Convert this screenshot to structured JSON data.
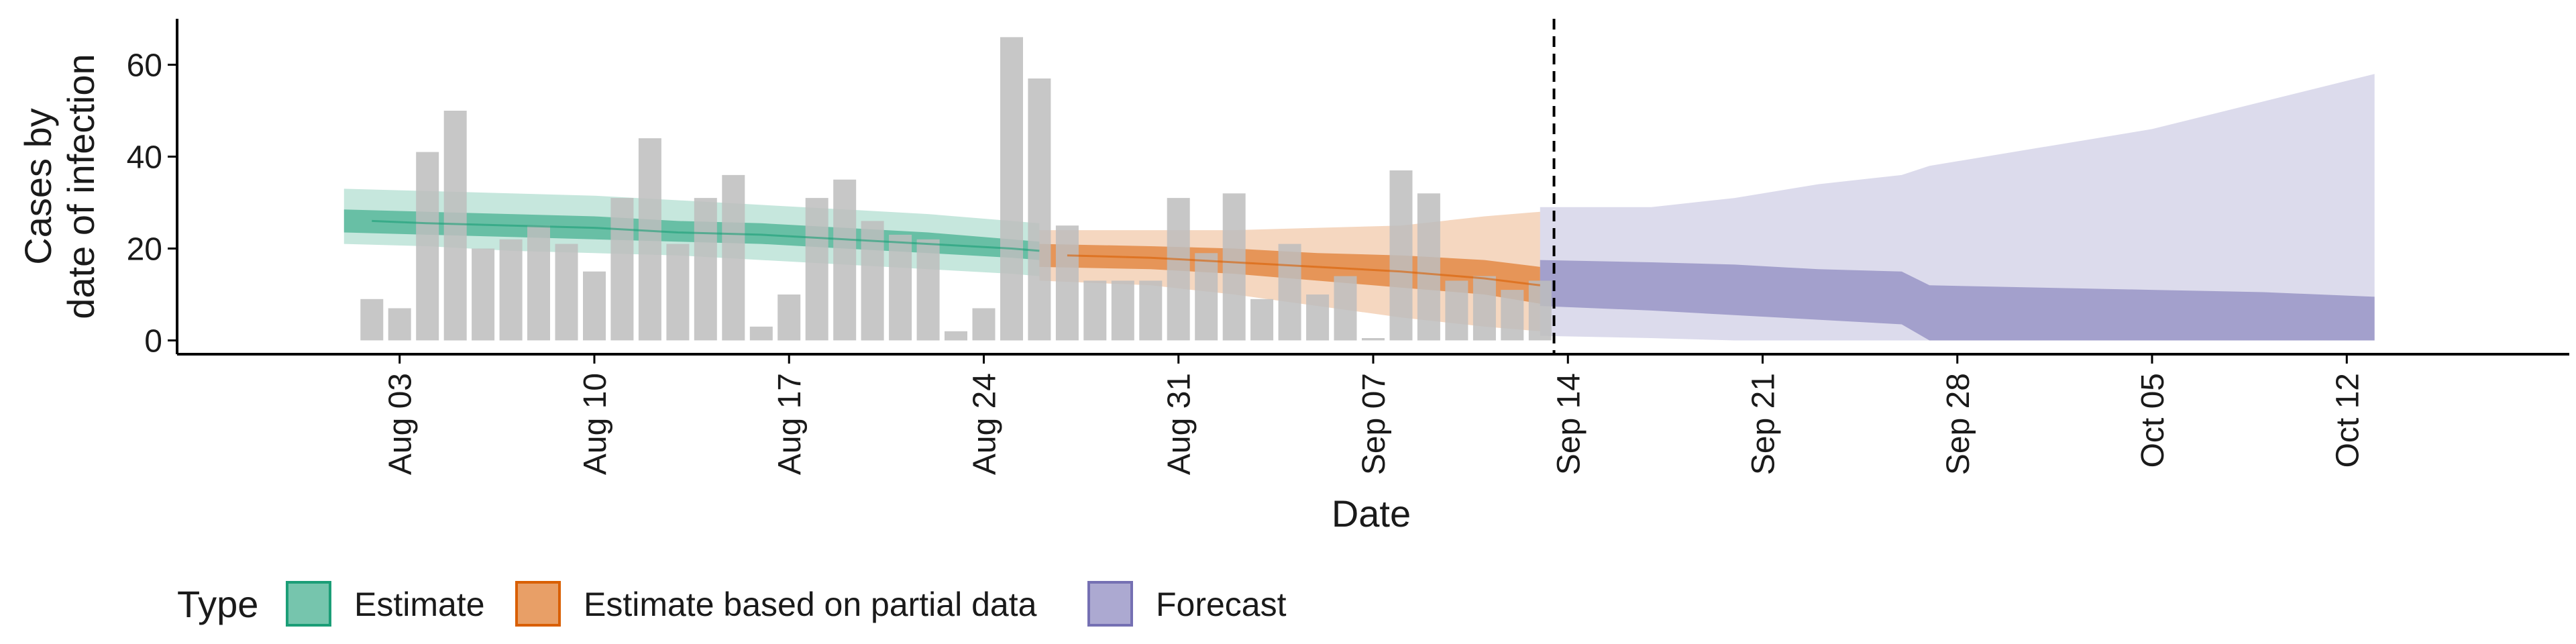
{
  "chart_data": {
    "type": "bar",
    "xlabel": "Date",
    "ylabel_lines": [
      "Cases by",
      "date of infection"
    ],
    "ylim": [
      -3,
      70
    ],
    "y_ticks": [
      0,
      20,
      40,
      60
    ],
    "x_ticks": [
      {
        "date": "2020-08-03",
        "label": "Aug 03"
      },
      {
        "date": "2020-08-10",
        "label": "Aug 10"
      },
      {
        "date": "2020-08-17",
        "label": "Aug 17"
      },
      {
        "date": "2020-08-24",
        "label": "Aug 24"
      },
      {
        "date": "2020-08-31",
        "label": "Aug 31"
      },
      {
        "date": "2020-09-07",
        "label": "Sep 07"
      },
      {
        "date": "2020-09-14",
        "label": "Sep 14"
      },
      {
        "date": "2020-09-21",
        "label": "Sep 21"
      },
      {
        "date": "2020-09-28",
        "label": "Sep 28"
      },
      {
        "date": "2020-10-05",
        "label": "Oct 05"
      },
      {
        "date": "2020-10-12",
        "label": "Oct 12"
      }
    ],
    "x_range": [
      "2020-07-26",
      "2020-10-20"
    ],
    "reference_line_date": "2020-09-13",
    "observed_cases": {
      "dates": [
        "2020-08-02",
        "2020-08-03",
        "2020-08-04",
        "2020-08-05",
        "2020-08-06",
        "2020-08-07",
        "2020-08-08",
        "2020-08-09",
        "2020-08-10",
        "2020-08-11",
        "2020-08-12",
        "2020-08-13",
        "2020-08-14",
        "2020-08-15",
        "2020-08-16",
        "2020-08-17",
        "2020-08-18",
        "2020-08-19",
        "2020-08-20",
        "2020-08-21",
        "2020-08-22",
        "2020-08-23",
        "2020-08-24",
        "2020-08-25",
        "2020-08-26",
        "2020-08-27",
        "2020-08-28",
        "2020-08-29",
        "2020-08-30",
        "2020-08-31",
        "2020-09-01",
        "2020-09-02",
        "2020-09-03",
        "2020-09-04",
        "2020-09-05",
        "2020-09-06",
        "2020-09-07",
        "2020-09-08",
        "2020-09-09",
        "2020-09-10",
        "2020-09-11",
        "2020-09-12",
        "2020-09-13"
      ],
      "values": [
        9,
        7,
        41,
        50,
        20,
        22,
        25,
        21,
        15,
        31,
        44,
        21,
        31,
        36,
        3,
        10,
        31,
        35,
        26,
        23,
        22,
        2,
        7,
        66,
        57,
        25,
        13,
        13,
        13,
        31,
        19,
        32,
        9,
        21,
        10,
        14,
        0.5,
        37,
        32,
        13,
        14,
        11,
        13
      ]
    },
    "series": [
      {
        "name": "Estimate",
        "color": "#1b9e77",
        "dates": [
          "2020-08-02",
          "2020-08-04",
          "2020-08-07",
          "2020-08-10",
          "2020-08-13",
          "2020-08-16",
          "2020-08-19",
          "2020-08-22",
          "2020-08-25",
          "2020-08-26"
        ],
        "median": [
          26,
          25.5,
          25,
          24.5,
          23.5,
          23,
          22,
          21,
          20,
          19.5
        ],
        "inner_lower": [
          23.5,
          23,
          22.5,
          22,
          21.5,
          21,
          20,
          19,
          18,
          17.5
        ],
        "inner_upper": [
          28.5,
          28,
          27.5,
          27,
          26,
          25.5,
          24.5,
          23.5,
          22,
          21.5
        ],
        "outer_lower": [
          21,
          20.5,
          19.5,
          19,
          18.5,
          17.5,
          16.5,
          15.5,
          14.5,
          14
        ],
        "outer_upper": [
          33,
          32.5,
          32,
          31.5,
          30.5,
          29.5,
          28.5,
          27.5,
          26,
          25.5
        ]
      },
      {
        "name": "Estimate based on partial data",
        "color": "#d95f02",
        "dates": [
          "2020-08-27",
          "2020-08-30",
          "2020-09-02",
          "2020-09-05",
          "2020-09-08",
          "2020-09-11",
          "2020-09-13"
        ],
        "median": [
          18.5,
          18,
          17,
          16,
          15,
          13.5,
          12
        ],
        "inner_lower": [
          16,
          15.5,
          14.5,
          13,
          11.5,
          10,
          8
        ],
        "inner_upper": [
          21,
          20.5,
          20,
          19,
          18.5,
          17.5,
          16
        ],
        "outer_lower": [
          13,
          12,
          10,
          7.5,
          5,
          3,
          2
        ],
        "outer_upper": [
          24,
          24,
          24,
          24.5,
          25,
          27,
          28
        ]
      },
      {
        "name": "Forecast",
        "color": "#7570b3",
        "dates": [
          "2020-09-14",
          "2020-09-17",
          "2020-09-20",
          "2020-09-23",
          "2020-09-26",
          "2020-09-27",
          "2020-10-01",
          "2020-10-05",
          "2020-10-09",
          "2020-10-13"
        ],
        "inner_lower": [
          7.5,
          6.5,
          5.5,
          4.5,
          3.5,
          0,
          0,
          0,
          0,
          0
        ],
        "inner_upper": [
          17.5,
          17,
          16.5,
          15.5,
          15,
          12,
          11.5,
          11,
          10.5,
          9.5
        ],
        "outer_lower": [
          1,
          0.5,
          0,
          0,
          0,
          0,
          0,
          0,
          0,
          0
        ],
        "outer_upper": [
          29,
          29,
          31,
          34,
          36,
          38,
          42,
          46,
          52,
          58
        ]
      }
    ],
    "legend": {
      "title": "Type",
      "items": [
        "Estimate",
        "Estimate based on partial data",
        "Forecast"
      ],
      "placement": "bottom"
    },
    "colors": {
      "bars": "#bdbdbd",
      "estimate": "#1b9e77",
      "partial": "#d95f02",
      "forecast": "#7570b3",
      "reference_line": "#000000"
    }
  }
}
